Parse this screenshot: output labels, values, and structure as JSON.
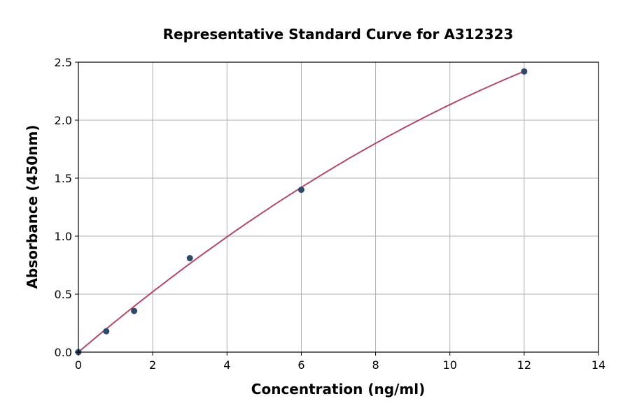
{
  "chart_data": {
    "type": "scatter",
    "title": "Representative Standard Curve for A312323",
    "xlabel": "Concentration (ng/ml)",
    "ylabel": "Absorbance (450nm)",
    "xlim": [
      0,
      14
    ],
    "ylim": [
      0,
      2.5
    ],
    "xticks": [
      "0",
      "2",
      "4",
      "6",
      "8",
      "10",
      "12",
      "14"
    ],
    "yticks": [
      "0.0",
      "0.5",
      "1.0",
      "1.5",
      "2.0",
      "2.5"
    ],
    "grid": true,
    "points": [
      {
        "x": 0,
        "y": 0.0
      },
      {
        "x": 0.75,
        "y": 0.18
      },
      {
        "x": 1.5,
        "y": 0.355
      },
      {
        "x": 3,
        "y": 0.81
      },
      {
        "x": 6,
        "y": 1.4
      },
      {
        "x": 12,
        "y": 2.42
      }
    ],
    "fit_curve": {
      "type": "polynomial",
      "coefficients": [
        0,
        0.2717,
        -0.00583
      ],
      "x_range": [
        0,
        12
      ]
    },
    "colors": {
      "points": "#2e4a6e",
      "curve": "#b5476b",
      "grid": "#b0b0b0"
    }
  }
}
